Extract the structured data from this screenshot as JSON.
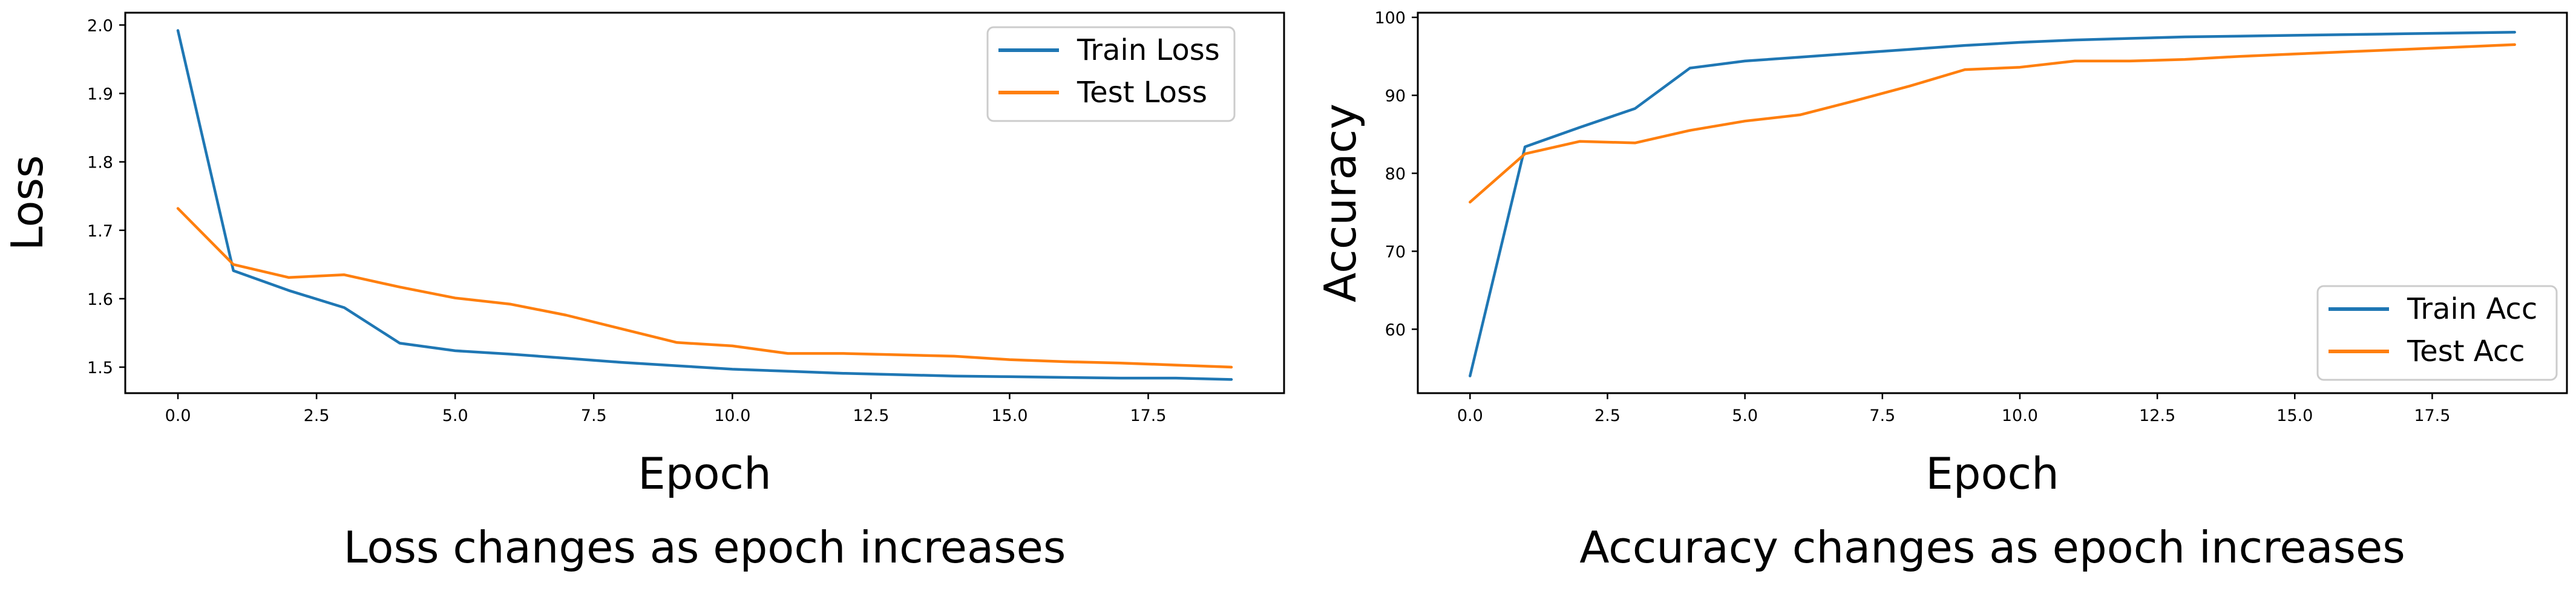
{
  "chart_data": [
    {
      "type": "line",
      "xlabel": "Epoch",
      "ylabel": "Loss",
      "caption": "Loss changes as epoch increases",
      "xlim": [
        -0.95,
        19.95
      ],
      "ylim": [
        1.462,
        2.018
      ],
      "xticks": [
        0.0,
        2.5,
        5.0,
        7.5,
        10.0,
        12.5,
        15.0,
        17.5
      ],
      "xtick_labels": [
        "0.0",
        "2.5",
        "5.0",
        "7.5",
        "10.0",
        "12.5",
        "15.0",
        "17.5"
      ],
      "yticks": [
        1.5,
        1.6,
        1.7,
        1.8,
        1.9,
        2.0
      ],
      "ytick_labels": [
        "1.5",
        "1.6",
        "1.7",
        "1.8",
        "1.9",
        "2.0"
      ],
      "legend_position": "top-right",
      "x": [
        0,
        1,
        2,
        3,
        4,
        5,
        6,
        7,
        8,
        9,
        10,
        11,
        12,
        13,
        14,
        15,
        16,
        17,
        18,
        19
      ],
      "series": [
        {
          "name": "Train Loss",
          "color": "#1f77b4",
          "values": [
            1.992,
            1.641,
            1.612,
            1.587,
            1.535,
            1.524,
            1.519,
            1.513,
            1.507,
            1.502,
            1.497,
            1.494,
            1.491,
            1.489,
            1.487,
            1.486,
            1.485,
            1.484,
            1.484,
            1.482
          ]
        },
        {
          "name": "Test Loss",
          "color": "#ff7f0e",
          "values": [
            1.732,
            1.65,
            1.631,
            1.635,
            1.617,
            1.601,
            1.592,
            1.576,
            1.556,
            1.536,
            1.531,
            1.52,
            1.52,
            1.518,
            1.516,
            1.511,
            1.508,
            1.506,
            1.503,
            1.5
          ]
        }
      ]
    },
    {
      "type": "line",
      "xlabel": "Epoch",
      "ylabel": "Accuracy",
      "caption": "Accuracy changes as epoch increases",
      "xlim": [
        -0.95,
        19.95
      ],
      "ylim": [
        51.8,
        100.6
      ],
      "xticks": [
        0.0,
        2.5,
        5.0,
        7.5,
        10.0,
        12.5,
        15.0,
        17.5
      ],
      "xtick_labels": [
        "0.0",
        "2.5",
        "5.0",
        "7.5",
        "10.0",
        "12.5",
        "15.0",
        "17.5"
      ],
      "yticks": [
        60,
        70,
        80,
        90,
        100
      ],
      "ytick_labels": [
        "60",
        "70",
        "80",
        "90",
        "100"
      ],
      "legend_position": "bottom-right",
      "x": [
        0,
        1,
        2,
        3,
        4,
        5,
        6,
        7,
        8,
        9,
        10,
        11,
        12,
        13,
        14,
        15,
        16,
        17,
        18,
        19
      ],
      "series": [
        {
          "name": "Train Acc",
          "color": "#1f77b4",
          "values": [
            54.0,
            83.4,
            85.9,
            88.3,
            93.5,
            94.4,
            94.9,
            95.4,
            95.9,
            96.4,
            96.8,
            97.1,
            97.3,
            97.5,
            97.6,
            97.7,
            97.8,
            97.9,
            98.0,
            98.1
          ]
        },
        {
          "name": "Test Acc",
          "color": "#ff7f0e",
          "values": [
            76.3,
            82.5,
            84.1,
            83.9,
            85.5,
            86.7,
            87.5,
            89.3,
            91.2,
            93.3,
            93.6,
            94.4,
            94.4,
            94.6,
            95.0,
            95.3,
            95.6,
            95.9,
            96.2,
            96.5
          ]
        }
      ]
    }
  ]
}
